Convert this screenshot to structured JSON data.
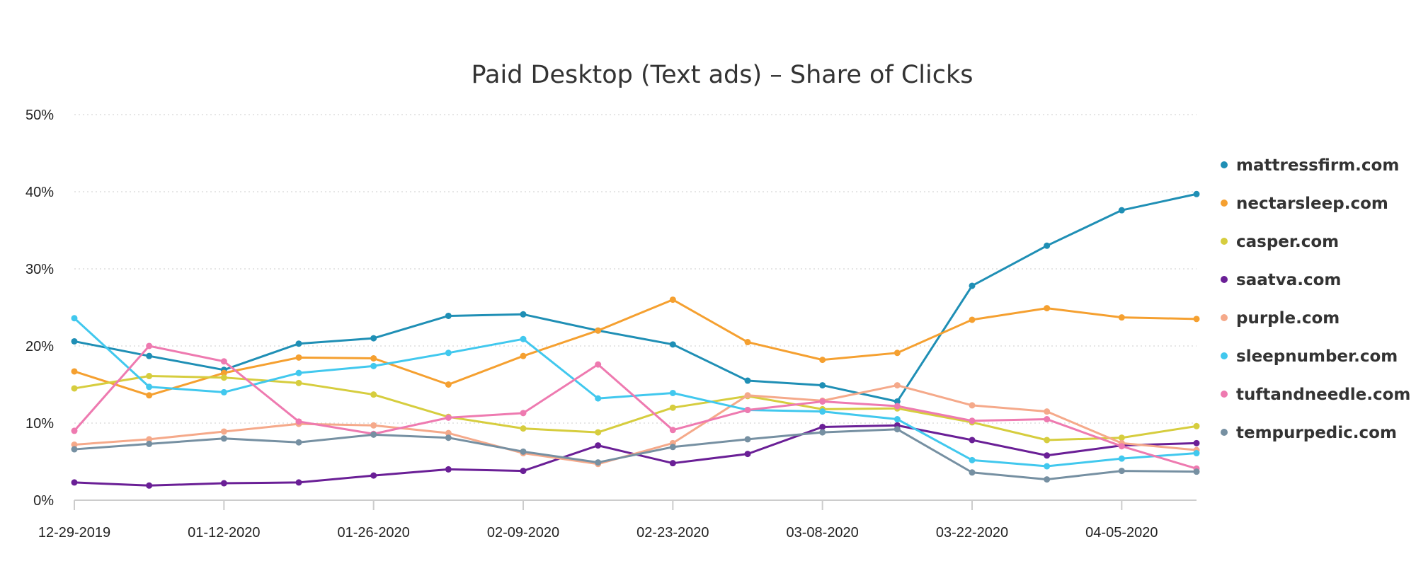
{
  "chart_data": {
    "type": "line",
    "title": "Paid Desktop (Text ads) – Share of Clicks",
    "xlabel": "",
    "ylabel": "",
    "x": [
      "12-29-2019",
      "01-05-2020",
      "01-12-2020",
      "01-19-2020",
      "01-26-2020",
      "02-02-2020",
      "02-09-2020",
      "02-16-2020",
      "02-23-2020",
      "03-01-2020",
      "03-08-2020",
      "03-15-2020",
      "03-22-2020",
      "03-29-2020",
      "04-05-2020",
      "04-12-2020"
    ],
    "x_tick_labels": [
      "12-29-2019",
      "01-12-2020",
      "01-26-2020",
      "02-09-2020",
      "02-23-2020",
      "03-08-2020",
      "03-22-2020",
      "04-05-2020"
    ],
    "y_tick_labels": [
      "0%",
      "10%",
      "20%",
      "30%",
      "40%",
      "50%"
    ],
    "ylim": [
      0,
      50
    ],
    "grid": "horizontal dotted",
    "legend_position": "right",
    "series": [
      {
        "name": "mattressfirm.com",
        "color": "#1f8fb5",
        "values": [
          20.6,
          18.7,
          16.9,
          20.3,
          21.0,
          23.9,
          24.1,
          22.0,
          20.2,
          15.5,
          14.9,
          12.8,
          27.8,
          33.0,
          37.6,
          39.7
        ]
      },
      {
        "name": "nectarsleep.com",
        "color": "#f5a030",
        "values": [
          16.7,
          13.6,
          16.5,
          18.5,
          18.4,
          15.0,
          18.7,
          22.0,
          26.0,
          20.5,
          18.2,
          19.1,
          23.4,
          24.9,
          23.7,
          23.5
        ]
      },
      {
        "name": "casper.com",
        "color": "#d6cd3e",
        "values": [
          14.5,
          16.1,
          15.9,
          15.2,
          13.7,
          10.8,
          9.3,
          8.8,
          12.0,
          13.5,
          11.8,
          11.9,
          10.1,
          7.8,
          8.1,
          9.6
        ]
      },
      {
        "name": "saatva.com",
        "color": "#6a1f96",
        "values": [
          2.3,
          1.9,
          2.2,
          2.3,
          3.2,
          4.0,
          3.8,
          7.1,
          4.8,
          6.0,
          9.5,
          9.7,
          7.8,
          5.8,
          7.1,
          7.4
        ]
      },
      {
        "name": "purple.com",
        "color": "#f5a98a",
        "values": [
          7.2,
          7.9,
          8.9,
          9.9,
          9.7,
          8.7,
          6.1,
          4.7,
          7.4,
          13.6,
          12.9,
          14.9,
          12.3,
          11.5,
          7.4,
          6.5
        ]
      },
      {
        "name": "sleepnumber.com",
        "color": "#41c8ee",
        "values": [
          23.6,
          14.7,
          14.0,
          16.5,
          17.4,
          19.1,
          20.9,
          13.2,
          13.9,
          11.7,
          11.5,
          10.5,
          5.2,
          4.4,
          5.4,
          6.1
        ]
      },
      {
        "name": "tuftandneedle.com",
        "color": "#ee7ab0",
        "values": [
          9.0,
          20.0,
          18.0,
          10.2,
          8.6,
          10.7,
          11.3,
          17.6,
          9.1,
          11.7,
          12.8,
          12.2,
          10.3,
          10.5,
          7.0,
          4.1
        ]
      },
      {
        "name": "tempurpedic.com",
        "color": "#7690a2",
        "values": [
          6.6,
          7.3,
          8.0,
          7.5,
          8.5,
          8.1,
          6.3,
          4.9,
          6.9,
          7.9,
          8.8,
          9.2,
          3.6,
          2.7,
          3.8,
          3.7
        ]
      }
    ]
  }
}
